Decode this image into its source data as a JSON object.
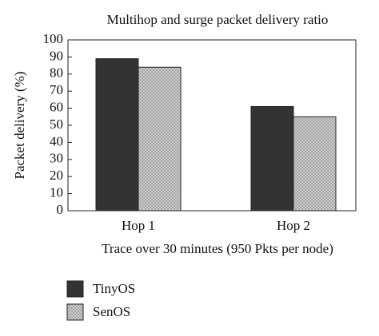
{
  "chart_data": {
    "type": "bar",
    "title": "Multihop and surge packet delivery ratio",
    "x_label": "Trace over 30 minutes (950 Pkts per node)",
    "y_label": "Packet delivery (%)",
    "categories": [
      "Hop 1",
      "Hop 2"
    ],
    "series": [
      {
        "name": "TinyOS",
        "color": "#333333",
        "hatch": false,
        "values": [
          89,
          61
        ]
      },
      {
        "name": "SenOS",
        "color": "#d4d4d4",
        "hatch": true,
        "values": [
          84,
          55
        ]
      }
    ],
    "ylim": [
      0,
      100
    ],
    "yticks": [
      0,
      10,
      20,
      30,
      40,
      50,
      60,
      70,
      80,
      90,
      100
    ]
  }
}
